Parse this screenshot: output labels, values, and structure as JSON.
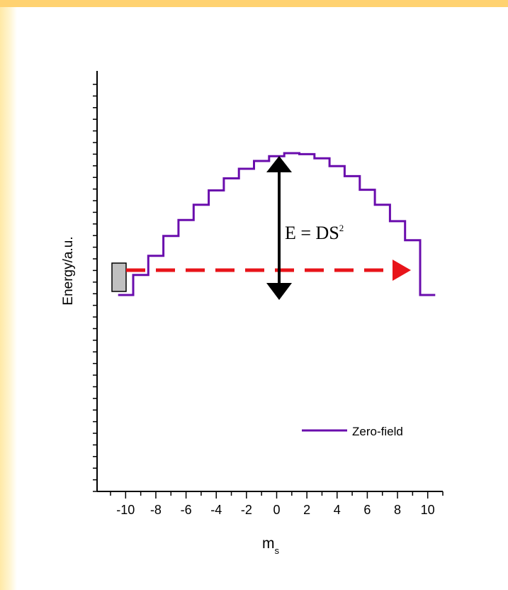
{
  "chart_data": {
    "type": "line",
    "title": "",
    "xlabel": "m",
    "xlabel_subscript": "s",
    "ylabel": "Energy/a.u.",
    "xlim": [
      -11,
      11
    ],
    "xticks": [
      -10,
      -8,
      -6,
      -4,
      -2,
      0,
      2,
      4,
      6,
      8,
      10
    ],
    "series": [
      {
        "name": "Zero-field",
        "color": "#6a0dad",
        "style": "step",
        "x": [
          -10,
          -9,
          -8,
          -7,
          -6,
          -5,
          -4,
          -3,
          -2,
          -1,
          0,
          1,
          2,
          3,
          4,
          5,
          6,
          7,
          8,
          9,
          10
        ],
        "values": [
          0,
          100,
          196,
          295,
          375,
          451,
          523,
          583,
          631,
          670,
          694,
          709,
          704,
          683,
          644,
          594,
          526,
          451,
          369,
          274,
          0
        ]
      }
    ],
    "annotations": {
      "formula": "E = DS",
      "formula_superscript": "2",
      "barrier_arrow_color": "#000000",
      "tunneling_arrow_color": "#e8141a",
      "start_marker_color": "#c0c0c0"
    },
    "legend": {
      "placement": "lower-right"
    },
    "grid": false
  }
}
